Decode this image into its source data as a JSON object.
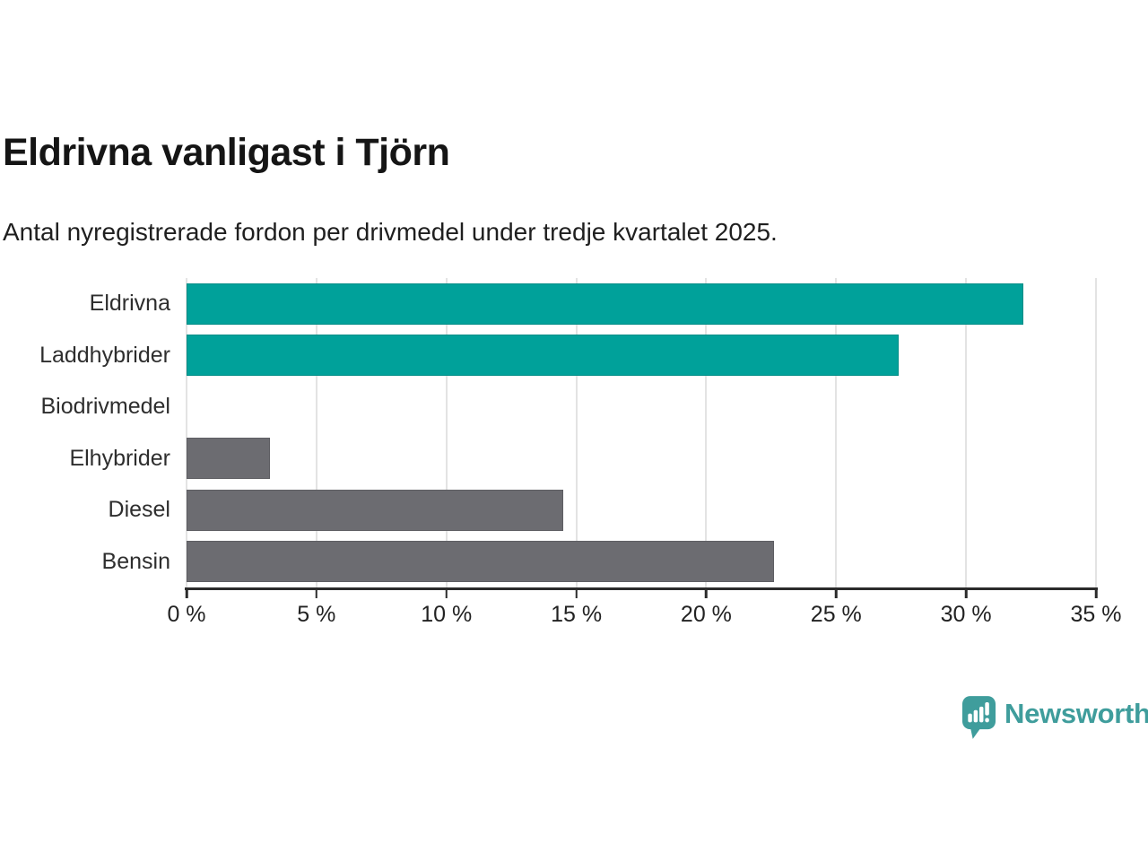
{
  "header": {
    "title": "Eldrivna vanligast i Tjörn",
    "subtitle": "Antal nyregistrerade fordon per drivmedel under tredje kvartalet 2025."
  },
  "chart_data": {
    "type": "bar",
    "orientation": "horizontal",
    "title": "Eldrivna vanligast i Tjörn",
    "subtitle": "Antal nyregistrerade fordon per drivmedel under tredje kvartalet 2025.",
    "categories": [
      "Eldrivna",
      "Laddhybrider",
      "Biodrivmedel",
      "Elhybrider",
      "Diesel",
      "Bensin"
    ],
    "values": [
      32.2,
      27.4,
      0,
      3.2,
      14.5,
      22.6
    ],
    "unit": "%",
    "bar_colors": [
      "#00a19a",
      "#00a19a",
      "#6c6c71",
      "#6c6c71",
      "#6c6c71",
      "#6c6c71"
    ],
    "xlabel": "",
    "ylabel": "",
    "xlim": [
      0,
      35
    ],
    "x_ticks": [
      0,
      5,
      10,
      15,
      20,
      25,
      30,
      35
    ],
    "x_tick_labels": [
      "0 %",
      "5 %",
      "10 %",
      "15 %",
      "20 %",
      "25 %",
      "30 %",
      "35 %"
    ],
    "grid": "vertical",
    "legend": "none"
  },
  "colors": {
    "accent_teal": "#00a19a",
    "bar_gray": "#6c6c71",
    "gridline": "#e3e3e3",
    "axis": "#2b2b2b",
    "text": "#1a1a1a",
    "logo_teal": "#3f9d9c",
    "background": "#ffffff"
  },
  "footer": {
    "brand": "Newsworthy"
  }
}
